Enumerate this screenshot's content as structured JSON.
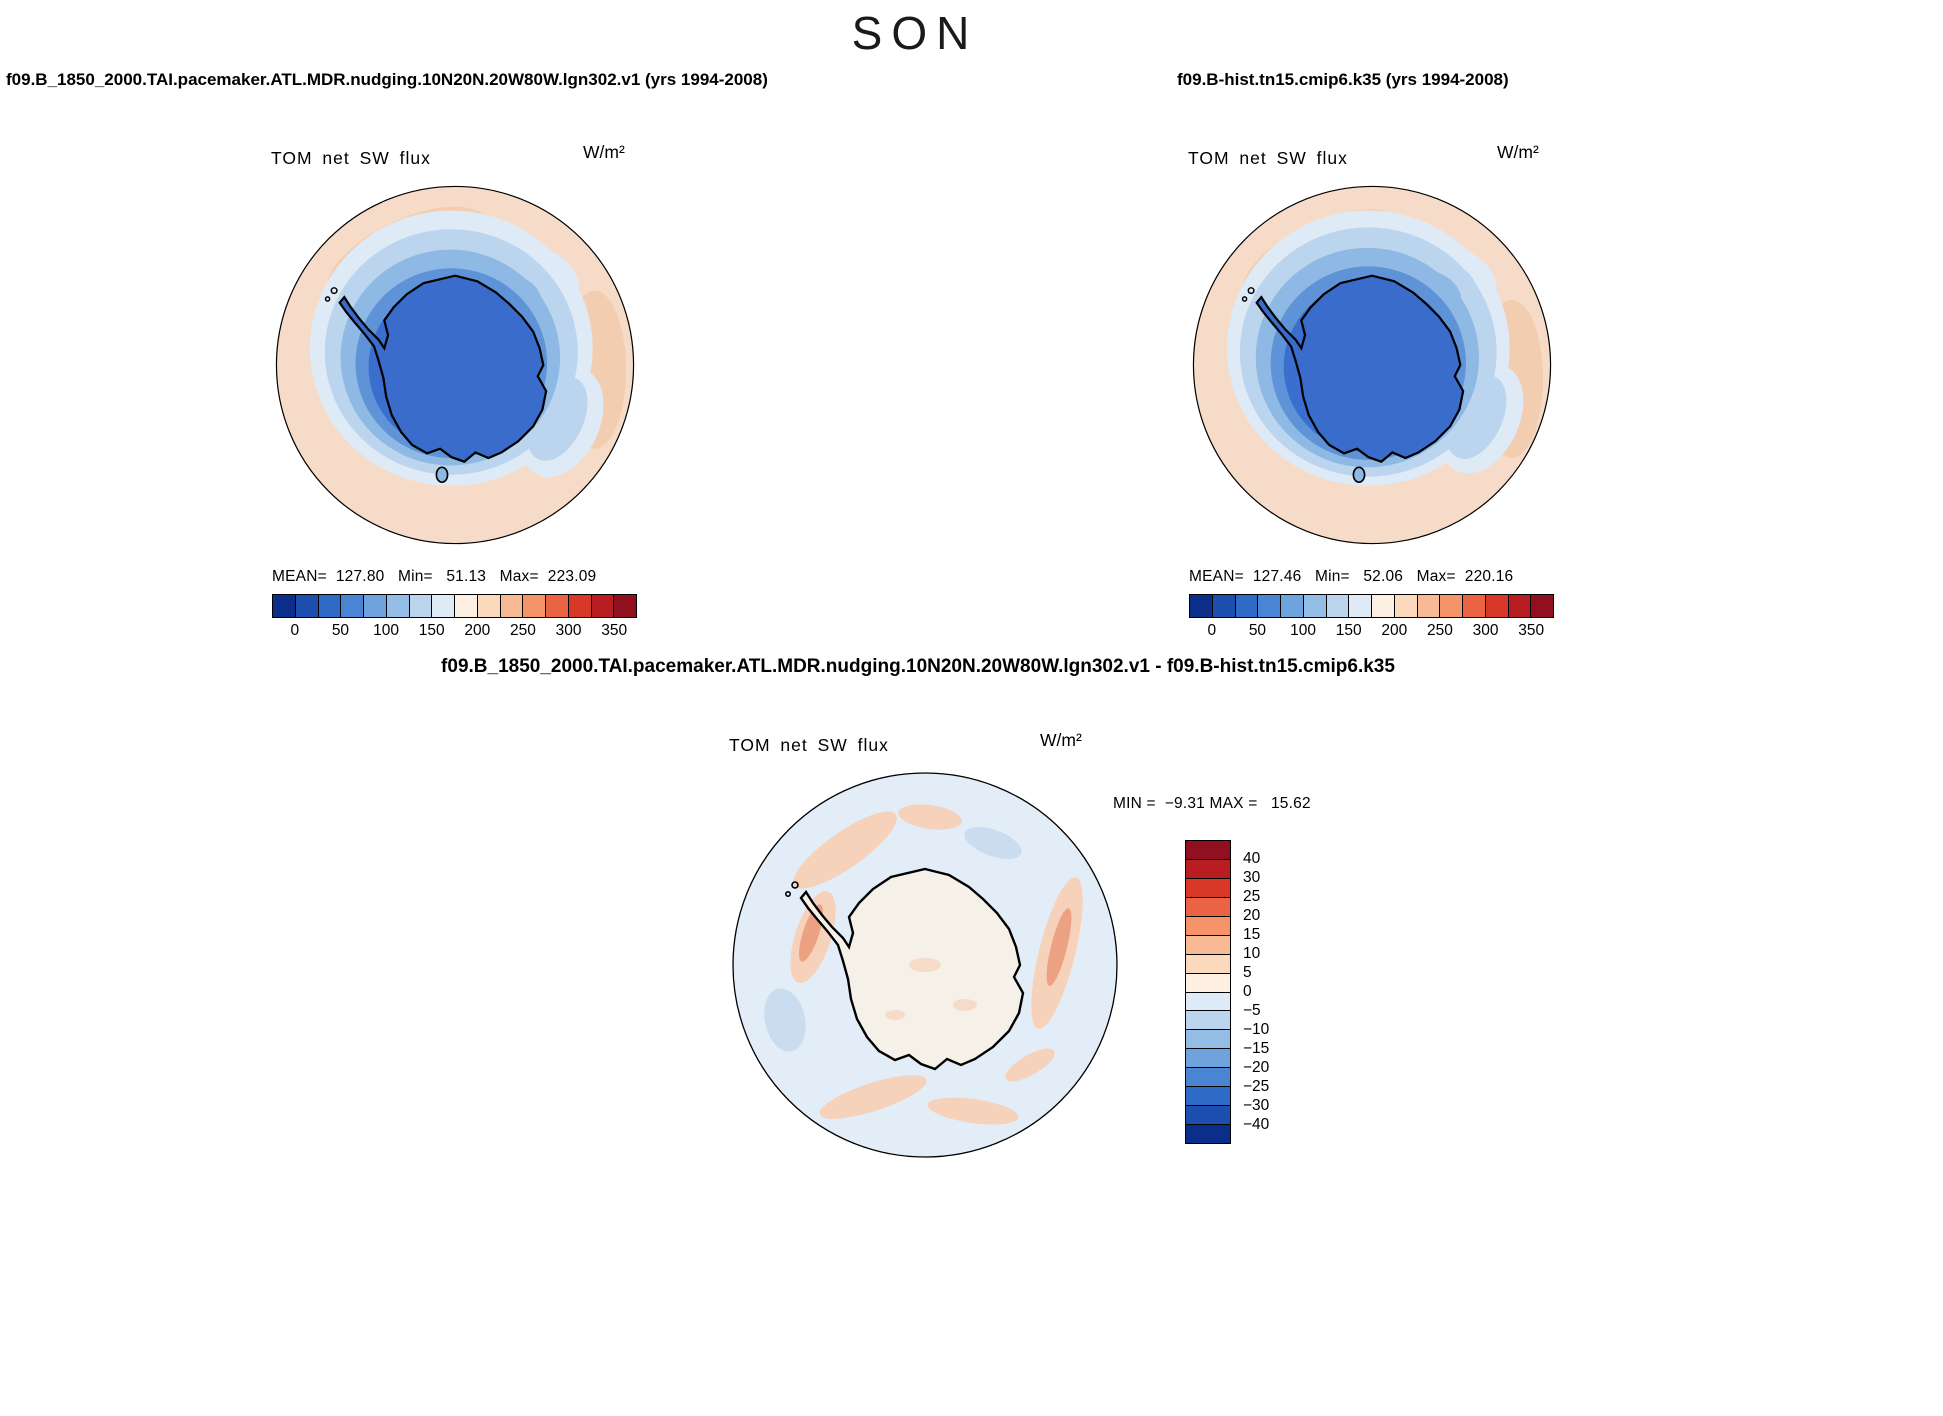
{
  "title": "SON",
  "panels": {
    "left": {
      "header": "f09.B_1850_2000.TAI.pacemaker.ATL.MDR.nudging.10N20N.20W80W.lgn302.v1 (yrs 1994-2008)",
      "field_label": "TOM net SW flux",
      "units": "W/m²",
      "stats_line": "MEAN=  127.80   Min=   51.13   Max=  223.09"
    },
    "right": {
      "header": "f09.B-hist.tn15.cmip6.k35 (yrs 1994-2008)",
      "field_label": "TOM net SW flux",
      "units": "W/m²",
      "stats_line": "MEAN=  127.46   Min=   52.06   Max=  220.16"
    },
    "diff": {
      "header": "f09.B_1850_2000.TAI.pacemaker.ATL.MDR.nudging.10N20N.20W80W.lgn302.v1 - f09.B-hist.tn15.cmip6.k35",
      "field_label": "TOM net SW flux",
      "units": "W/m²",
      "stats_line": "MIN =  −9.31 MAX =   15.62"
    }
  },
  "colorbar_abs": {
    "ticks": [
      "0",
      "50",
      "100",
      "150",
      "200",
      "250",
      "300",
      "350"
    ],
    "colors": [
      "#0b2e8a",
      "#1d4fb0",
      "#2f6ac6",
      "#4a85d3",
      "#6fa3dd",
      "#94bde6",
      "#bcd5ef",
      "#dfeaf7",
      "#fdf0e2",
      "#fbd9bd",
      "#f8ba94",
      "#f49468",
      "#ea6444",
      "#d83827",
      "#b81d22",
      "#901020"
    ]
  },
  "colorbar_diff": {
    "labels": [
      "40",
      "30",
      "25",
      "20",
      "15",
      "10",
      "5",
      "0",
      "−5",
      "−10",
      "−15",
      "−20",
      "−25",
      "−30",
      "−40"
    ],
    "colors": [
      "#901020",
      "#b81d22",
      "#d83827",
      "#ea6444",
      "#f49468",
      "#f8ba94",
      "#fbd9bd",
      "#fdf0e2",
      "#dfeaf7",
      "#bcd5ef",
      "#94bde6",
      "#6fa3dd",
      "#4a85d3",
      "#2f6ac6",
      "#1d4fb0",
      "#0b2e8a"
    ]
  },
  "chart_data": [
    {
      "type": "heatmap",
      "title": "TOM net SW flux",
      "run": "f09.B_1850_2000.TAI.pacemaker.ATL.MDR.nudging.10N20N.20W80W.lgn302.v1",
      "years": "1994-2008",
      "season": "SON",
      "units": "W/m²",
      "projection": "south-polar-stereographic",
      "stats": {
        "mean": 127.8,
        "min": 51.13,
        "max": 223.09
      },
      "colorbar_ticks": [
        0,
        50,
        100,
        150,
        200,
        250,
        300,
        350
      ],
      "legend_position": "below"
    },
    {
      "type": "heatmap",
      "title": "TOM net SW flux",
      "run": "f09.B-hist.tn15.cmip6.k35",
      "years": "1994-2008",
      "season": "SON",
      "units": "W/m²",
      "projection": "south-polar-stereographic",
      "stats": {
        "mean": 127.46,
        "min": 52.06,
        "max": 220.16
      },
      "colorbar_ticks": [
        0,
        50,
        100,
        150,
        200,
        250,
        300,
        350
      ],
      "legend_position": "below"
    },
    {
      "type": "heatmap",
      "title": "TOM net SW flux (difference)",
      "run": "f09.B_1850_2000.TAI.pacemaker.ATL.MDR.nudging.10N20N.20W80W.lgn302.v1 - f09.B-hist.tn15.cmip6.k35",
      "season": "SON",
      "units": "W/m²",
      "projection": "south-polar-stereographic",
      "stats": {
        "min": -9.31,
        "max": 15.62
      },
      "colorbar_ticks": [
        40,
        30,
        25,
        20,
        15,
        10,
        5,
        0,
        -5,
        -10,
        -15,
        -20,
        -25,
        -30,
        -40
      ],
      "legend_position": "right"
    }
  ]
}
